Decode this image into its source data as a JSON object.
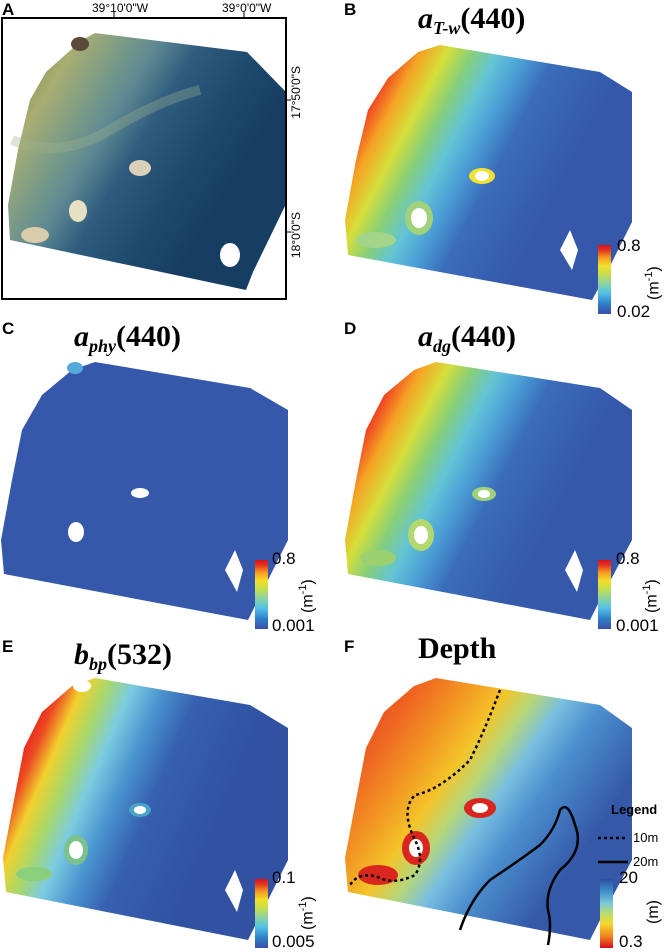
{
  "panels": {
    "a": {
      "letter": "A",
      "lon_ticks": [
        "39°10'0\"W",
        "39°0'0\"W"
      ],
      "lat_ticks": [
        "17°50'0\"S",
        "18°0'0\"S"
      ]
    },
    "b": {
      "letter": "B",
      "title_main": "a",
      "title_sub": "T-w",
      "title_tail": "(440)",
      "cb_max": "0.8",
      "cb_min": "0.02",
      "unit": "(m",
      "unit_exp": "-1",
      "unit_close": ")"
    },
    "c": {
      "letter": "C",
      "title_main": "a",
      "title_sub": "phy",
      "title_tail": "(440)",
      "cb_max": "0.8",
      "cb_min": "0.001",
      "unit": "(m",
      "unit_exp": "-1",
      "unit_close": ")"
    },
    "d": {
      "letter": "D",
      "title_main": "a",
      "title_sub": "dg",
      "title_tail": "(440)",
      "cb_max": "0.8",
      "cb_min": "0.001",
      "unit": "(m",
      "unit_exp": "-1",
      "unit_close": ")"
    },
    "e": {
      "letter": "E",
      "title_main": "b",
      "title_sub": "bp",
      "title_tail": "(532)",
      "cb_max": "0.1",
      "cb_min": "0.005",
      "unit": "(m",
      "unit_exp": "-1",
      "unit_close": ")"
    },
    "f": {
      "letter": "F",
      "title": "Depth",
      "cb_max": "20",
      "cb_min": "0.3",
      "unit": "(m)",
      "legend": {
        "title": "Legend",
        "line_10m": "10m",
        "line_20m": "20m"
      }
    }
  },
  "colors": {
    "rainbow": [
      "#3a4fa8",
      "#2f7fc9",
      "#52c2e6",
      "#8fd3a0",
      "#c8de4a",
      "#f3de2a",
      "#f59a1f",
      "#e53a22",
      "#d70f1e"
    ],
    "depth": [
      "#d70f1e",
      "#f28a1f",
      "#f4d72c",
      "#b8dc6e",
      "#79c9d8",
      "#3f8fcb",
      "#2b4fa0"
    ]
  }
}
